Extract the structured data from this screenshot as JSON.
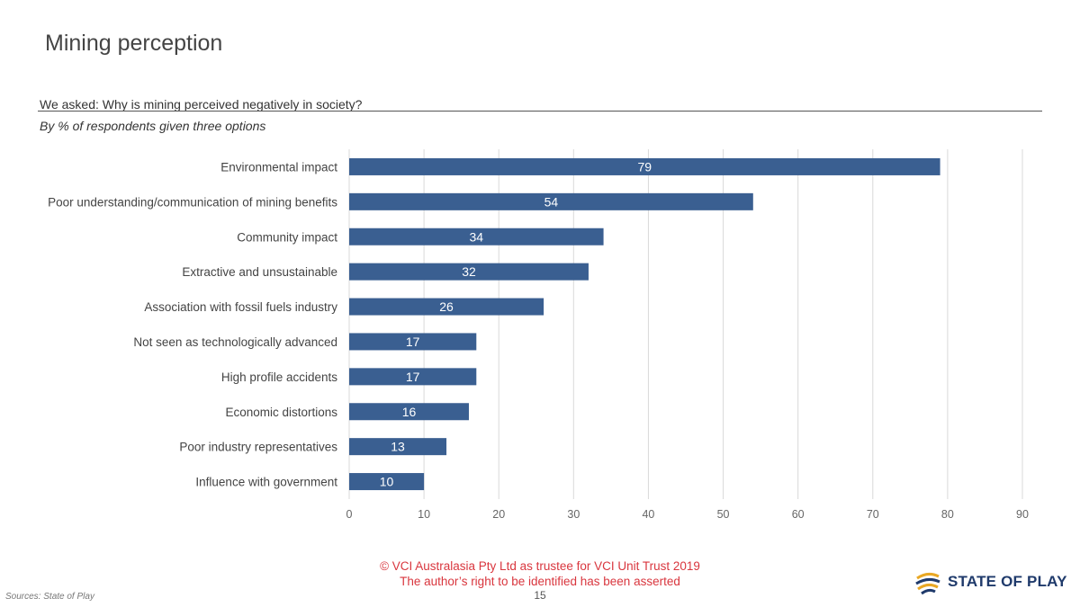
{
  "page": {
    "title": "Mining perception",
    "question": "We asked: Why is mining perceived negatively in society?",
    "subtitle": "By % of respondents given three options",
    "copyright_line1": "© VCI Australasia Pty Ltd as trustee for VCI Unit Trust 2019",
    "copyright_line2": "The author’s right to be identified has been asserted",
    "page_number": "15",
    "sources": "Sources: State of Play",
    "logo_text": "STATE OF PLAY"
  },
  "colors": {
    "bar": "#3a5f91",
    "grid": "#d9d9d9",
    "copyright": "#d9363e",
    "logo_navy": "#1f3a6b",
    "logo_gold": "#e9a825"
  },
  "chart_data": {
    "type": "bar",
    "orientation": "horizontal",
    "categories": [
      "Environmental impact",
      "Poor understanding/communication of mining benefits",
      "Community impact",
      "Extractive and unsustainable",
      "Association with fossil fuels industry",
      "Not seen as technologically advanced",
      "High profile accidents",
      "Economic distortions",
      "Poor industry representatives",
      "Influence with government"
    ],
    "values": [
      79,
      54,
      34,
      32,
      26,
      17,
      17,
      16,
      13,
      10
    ],
    "xlim": [
      0,
      90
    ],
    "xticks": [
      0,
      10,
      20,
      30,
      40,
      50,
      60,
      70,
      80,
      90
    ],
    "grid": true,
    "legend": "none",
    "data_labels": true
  }
}
